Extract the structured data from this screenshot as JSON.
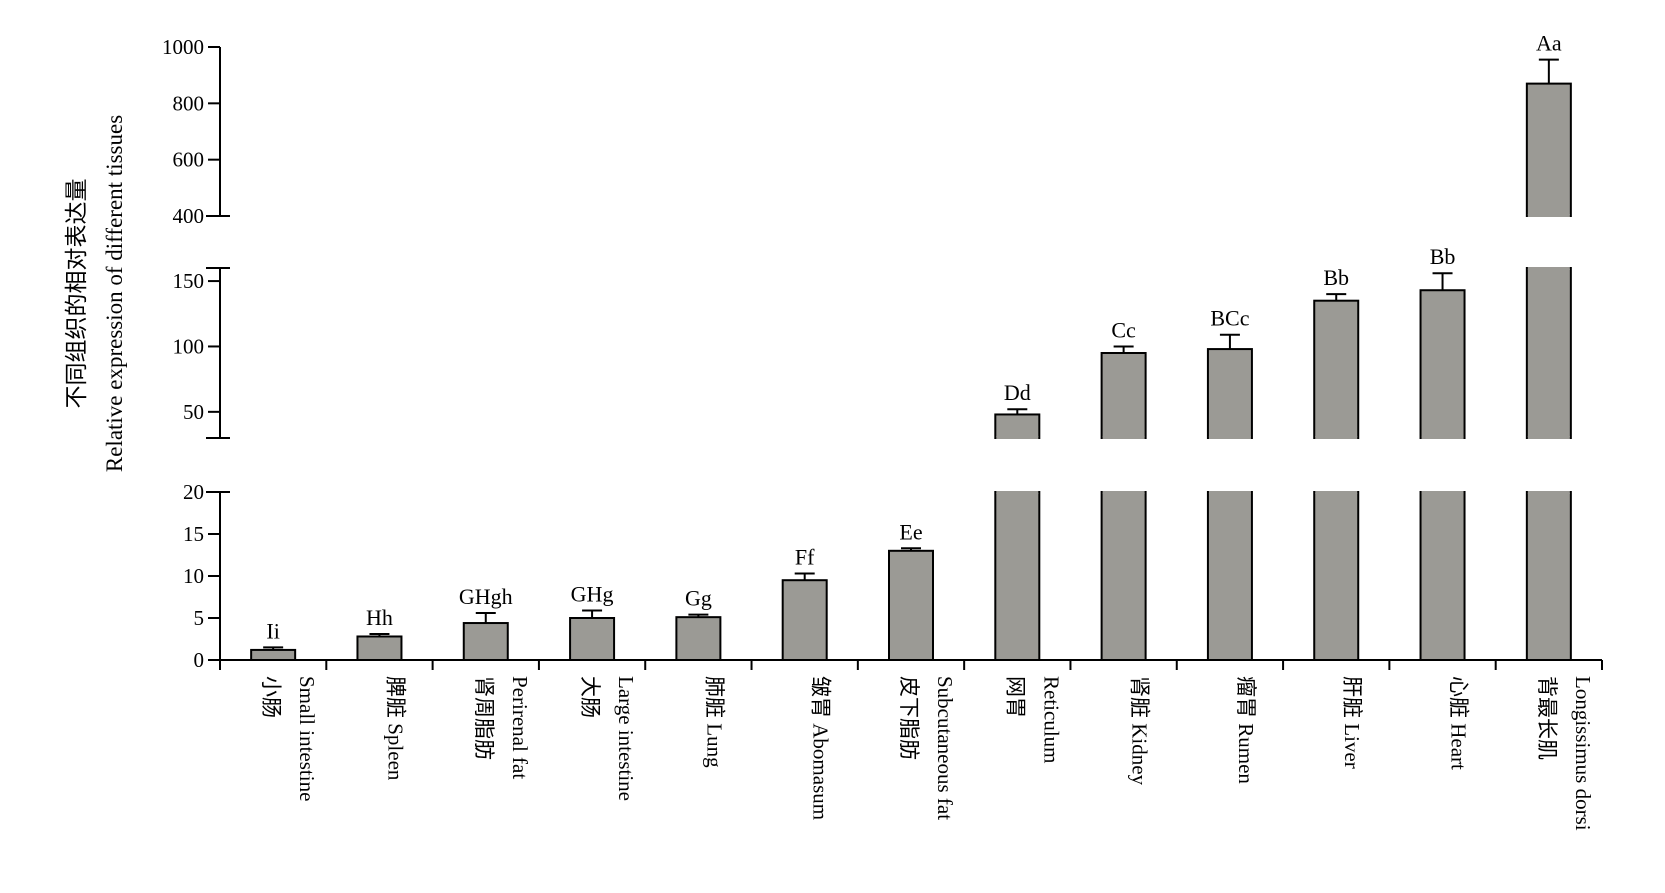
{
  "chart_data": {
    "type": "bar",
    "title": "",
    "ylabel": [
      "不同组织的相对表达量",
      "Relative expression of different tissues"
    ],
    "xlabel": "",
    "y_axis_broken": true,
    "y_segments": [
      {
        "range": [
          0,
          20
        ],
        "ticks": [
          0,
          5,
          10,
          15,
          20
        ]
      },
      {
        "range": [
          30,
          160
        ],
        "ticks": [
          50,
          100,
          150
        ]
      },
      {
        "range": [
          400,
          1000
        ],
        "ticks": [
          400,
          600,
          800,
          1000
        ]
      }
    ],
    "bar_color": "#9b9a95",
    "categories": [
      {
        "cn": "小肠",
        "en": "Small intestine"
      },
      {
        "cn": "脾脏 Spleen",
        "en": ""
      },
      {
        "cn": "肾周脂肪",
        "en": "Perirenal fat"
      },
      {
        "cn": "大肠",
        "en": "Large intestine"
      },
      {
        "cn": "肺脏 Lung",
        "en": ""
      },
      {
        "cn": "皱胃 Abomasum",
        "en": ""
      },
      {
        "cn": "皮下脂肪",
        "en": "Subcutaneous fat"
      },
      {
        "cn": "网胃",
        "en": "Reticulum"
      },
      {
        "cn": "肾脏 Kidney",
        "en": ""
      },
      {
        "cn": "瘤胃 Rumen",
        "en": ""
      },
      {
        "cn": "肝脏 Liver",
        "en": ""
      },
      {
        "cn": "心脏 Heart",
        "en": ""
      },
      {
        "cn": "背最长肌",
        "en": "Longissimus dorsi"
      }
    ],
    "values": [
      1.2,
      2.8,
      4.4,
      5.0,
      5.1,
      9.5,
      13.0,
      48,
      95,
      98,
      135,
      143,
      870
    ],
    "errors": [
      0.3,
      0.3,
      1.2,
      0.9,
      0.3,
      0.8,
      0.3,
      4,
      5,
      11,
      5,
      13,
      85
    ],
    "significance": [
      "Ii",
      "Hh",
      "GHgh",
      "GHg",
      "Gg",
      "Ff",
      "Ee",
      "Dd",
      "Cc",
      "BCc",
      "Bb",
      "Bb",
      "Aa"
    ],
    "grid": false,
    "legend": "none"
  }
}
